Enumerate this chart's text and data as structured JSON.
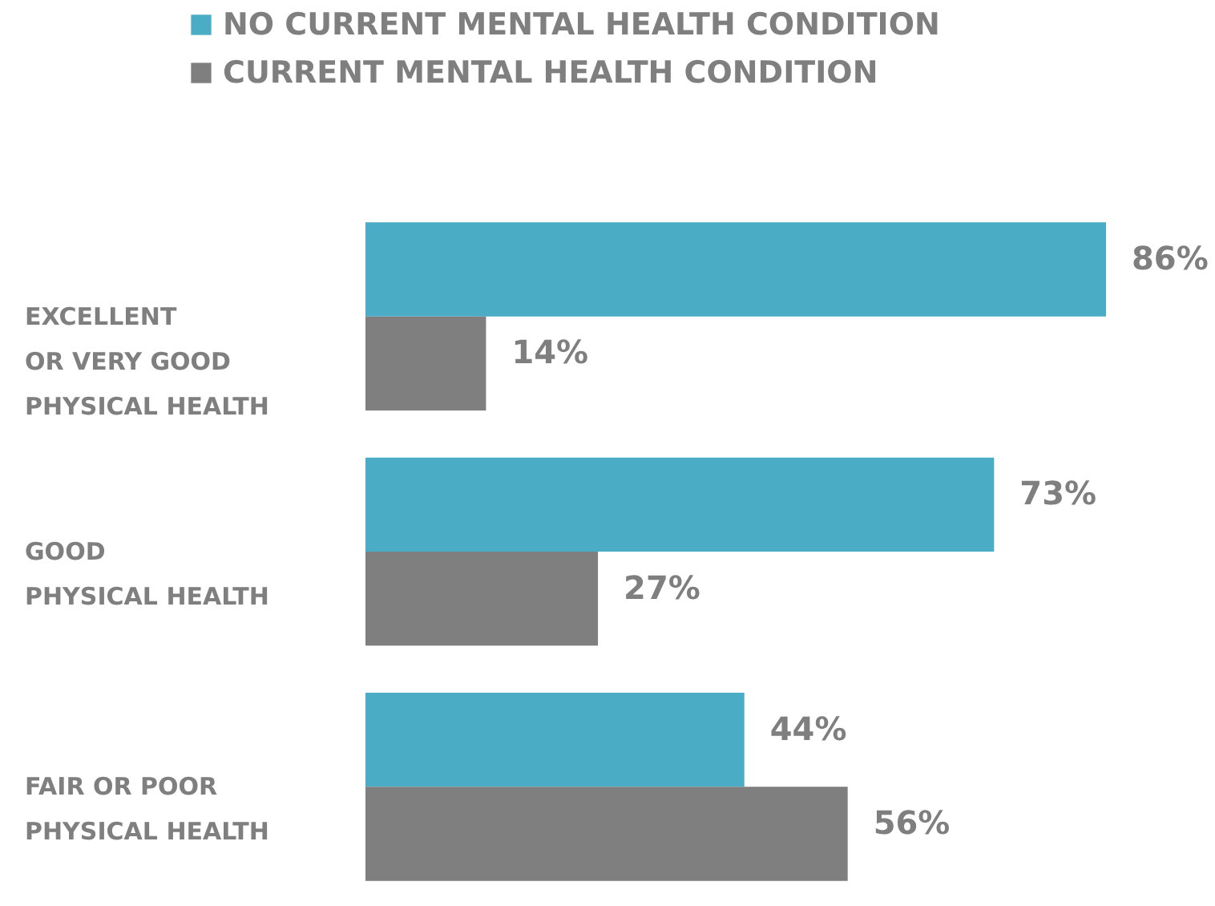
{
  "chart_data": {
    "type": "bar",
    "orientation": "horizontal",
    "legend": "top left",
    "categories": [
      "EXCELLENT OR VERY GOOD PHYSICAL HEALTH",
      "GOOD PHYSICAL HEALTH",
      "FAIR OR POOR PHYSICAL HEALTH"
    ],
    "series": [
      {
        "name": "NO CURRENT MENTAL HEALTH CONDITION",
        "color": "#4bacc6",
        "values": [
          86,
          73,
          44
        ],
        "value_labels": [
          "86%",
          "73%",
          "44%"
        ]
      },
      {
        "name": "CURRENT MENTAL HEALTH CONDITION",
        "color": "#7f7f7f",
        "values": [
          14,
          27,
          56
        ],
        "value_labels": [
          "14%",
          "27%",
          "56%"
        ]
      }
    ]
  }
}
